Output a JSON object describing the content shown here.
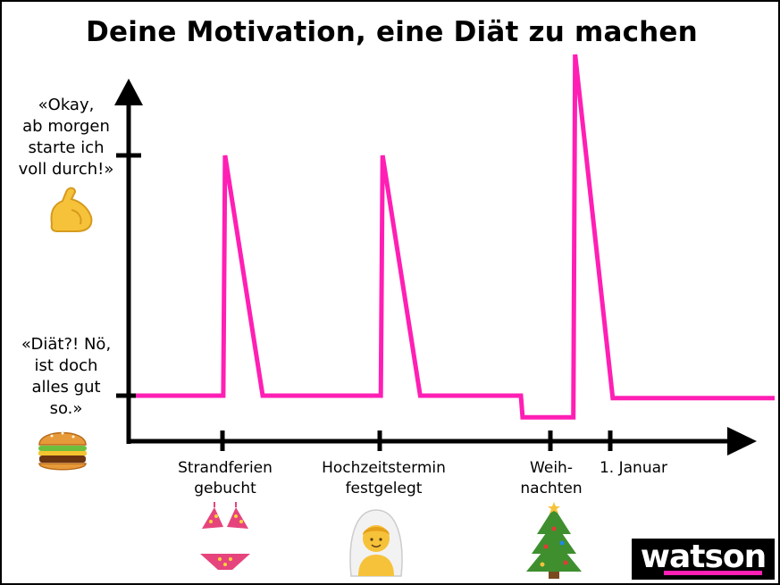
{
  "title": "Deine Motivation, eine Diät zu machen",
  "y_labels": {
    "high": "«Okay,\nab morgen\nstarte ich\nvoll durch!»",
    "low": "«Diät?! Nö,\nist doch\nalles gut\nso.»"
  },
  "x_labels": {
    "strand": "Strandferien\ngebucht",
    "hochzeit": "Hochzeitstermin\nfestgelegt",
    "weihnachten": "Weih-\nnachten",
    "januar": "1. Januar"
  },
  "icons": [
    "flexed-biceps-icon",
    "hamburger-icon",
    "bikini-icon",
    "bride-icon",
    "christmas-tree-icon"
  ],
  "brand": "watson",
  "colors": {
    "line": "#ff1fb4",
    "axis": "#000000",
    "brand_accent": "#ff1fb4"
  },
  "chart_data": {
    "type": "line",
    "title": "Deine Motivation, eine Diät zu machen",
    "xlabel": "",
    "ylabel": "",
    "y_scale": "0 = «Diät?! Nö, ist doch alles gut so.», 1 = «Okay, ab morgen starte ich voll durch!»",
    "ylim": [
      -0.3,
      1.5
    ],
    "x_ticks": [
      "Strandferien gebucht",
      "Hochzeitstermin festgelegt",
      "Weihnachten",
      "1. Januar"
    ],
    "y_ticks": [
      "«Diät?! Nö, ist doch alles gut so.»",
      "«Okay, ab morgen starte ich voll durch!»"
    ],
    "series": [
      {
        "x": [
          0,
          1.0,
          1.5,
          2.8,
          3.3,
          4.4,
          4.5,
          5.0,
          5.1
        ],
        "comment_x_units": "x in event units: 1 = Strandferien gebucht, 2.8 = Hochzeitstermin festgelegt, 4.4 = Weihnachten, 5.0 = 1. Januar",
        "points": [
          [
            0.0,
            0.0
          ],
          [
            1.0,
            0.0
          ],
          [
            1.02,
            1.0
          ],
          [
            1.45,
            0.0
          ],
          [
            2.8,
            0.0
          ],
          [
            2.82,
            1.0
          ],
          [
            3.25,
            0.0
          ],
          [
            4.4,
            0.0
          ],
          [
            4.42,
            -0.09
          ],
          [
            5.0,
            -0.09
          ],
          [
            5.02,
            1.42
          ],
          [
            5.45,
            -0.01
          ],
          [
            7.3,
            -0.01
          ]
        ]
      }
    ],
    "grid": false,
    "legend": "none"
  }
}
